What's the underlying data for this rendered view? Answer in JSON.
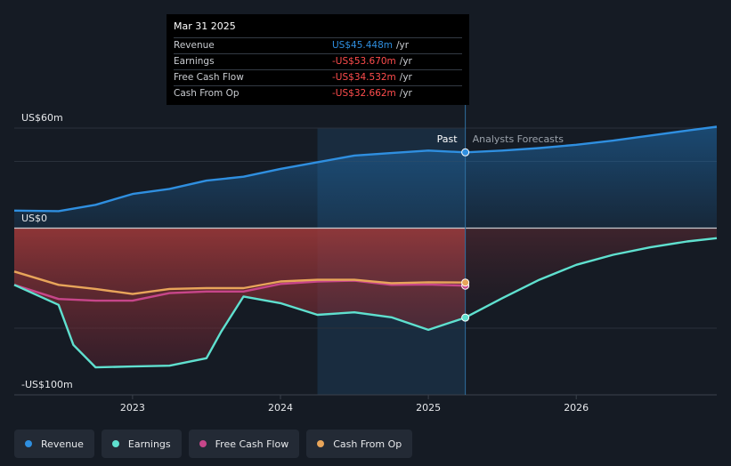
{
  "tooltip": {
    "date": "Mar 31 2025",
    "rows": [
      {
        "label": "Revenue",
        "value": "US$45.448m",
        "unit": "/yr",
        "color": "#2f8fe0"
      },
      {
        "label": "Earnings",
        "value": "-US$53.670m",
        "unit": "/yr",
        "color": "#ff4d4d"
      },
      {
        "label": "Free Cash Flow",
        "value": "-US$34.532m",
        "unit": "/yr",
        "color": "#ff4d4d"
      },
      {
        "label": "Cash From Op",
        "value": "-US$32.662m",
        "unit": "/yr",
        "color": "#ff4d4d"
      }
    ]
  },
  "labels": {
    "past": "Past",
    "forecast": "Analysts Forecasts"
  },
  "legend": [
    {
      "label": "Revenue",
      "color": "#2f8fe0"
    },
    {
      "label": "Earnings",
      "color": "#5fe0cf"
    },
    {
      "label": "Free Cash Flow",
      "color": "#c7468a"
    },
    {
      "label": "Cash From Op",
      "color": "#e8a55a"
    }
  ],
  "chart_data": {
    "type": "line",
    "y_unit": "US$m",
    "ylim": [
      -100,
      60
    ],
    "y_ticks": [
      {
        "value": 60,
        "label": "US$60m"
      },
      {
        "value": 0,
        "label": "US$0"
      },
      {
        "value": -100,
        "label": "-US$100m"
      }
    ],
    "x_ticks": [
      2023,
      2024,
      2025,
      2026
    ],
    "xlim": [
      2022.2,
      2026.95
    ],
    "past_end": 2025.25,
    "forecast_start": 2024.25,
    "series": [
      {
        "name": "Revenue",
        "color": "#2f8fe0",
        "points": [
          [
            2022.2,
            10.5
          ],
          [
            2022.5,
            10.2
          ],
          [
            2022.75,
            14.0
          ],
          [
            2023.0,
            20.5
          ],
          [
            2023.25,
            23.5
          ],
          [
            2023.5,
            28.5
          ],
          [
            2023.75,
            30.8
          ],
          [
            2024.0,
            35.5
          ],
          [
            2024.25,
            39.5
          ],
          [
            2024.5,
            43.5
          ],
          [
            2024.75,
            45.0
          ],
          [
            2025.0,
            46.5
          ],
          [
            2025.25,
            45.448
          ]
        ],
        "forecast": [
          [
            2025.25,
            45.448
          ],
          [
            2025.5,
            46.5
          ],
          [
            2025.75,
            48.0
          ],
          [
            2026.0,
            50.0
          ],
          [
            2026.25,
            52.5
          ],
          [
            2026.5,
            55.5
          ],
          [
            2026.75,
            58.5
          ],
          [
            2026.95,
            60.8
          ]
        ]
      },
      {
        "name": "Earnings",
        "color": "#5fe0cf",
        "points": [
          [
            2022.2,
            -34.0
          ],
          [
            2022.5,
            -46.0
          ],
          [
            2022.6,
            -70.0
          ],
          [
            2022.75,
            -83.5
          ],
          [
            2023.0,
            -83.0
          ],
          [
            2023.25,
            -82.5
          ],
          [
            2023.5,
            -78.0
          ],
          [
            2023.6,
            -62.0
          ],
          [
            2023.75,
            -41.0
          ],
          [
            2024.0,
            -45.0
          ],
          [
            2024.25,
            -52.0
          ],
          [
            2024.5,
            -50.5
          ],
          [
            2024.75,
            -53.5
          ],
          [
            2025.0,
            -61.0
          ],
          [
            2025.25,
            -53.67
          ]
        ],
        "forecast": [
          [
            2025.25,
            -53.67
          ],
          [
            2025.5,
            -42.0
          ],
          [
            2025.75,
            -31.0
          ],
          [
            2026.0,
            -22.0
          ],
          [
            2026.25,
            -16.0
          ],
          [
            2026.5,
            -11.5
          ],
          [
            2026.75,
            -8.0
          ],
          [
            2026.95,
            -6.0
          ]
        ]
      },
      {
        "name": "Free Cash Flow",
        "color": "#c7468a",
        "points": [
          [
            2022.2,
            -34.0
          ],
          [
            2022.5,
            -42.5
          ],
          [
            2022.75,
            -43.5
          ],
          [
            2023.0,
            -43.5
          ],
          [
            2023.25,
            -39.0
          ],
          [
            2023.5,
            -38.0
          ],
          [
            2023.75,
            -38.0
          ],
          [
            2024.0,
            -33.5
          ],
          [
            2024.25,
            -32.0
          ],
          [
            2024.5,
            -31.5
          ],
          [
            2024.75,
            -34.0
          ],
          [
            2025.0,
            -33.8
          ],
          [
            2025.25,
            -34.532
          ]
        ]
      },
      {
        "name": "Cash From Op",
        "color": "#e8a55a",
        "points": [
          [
            2022.2,
            -26.0
          ],
          [
            2022.5,
            -34.0
          ],
          [
            2022.75,
            -36.5
          ],
          [
            2023.0,
            -39.5
          ],
          [
            2023.25,
            -36.5
          ],
          [
            2023.5,
            -36.0
          ],
          [
            2023.75,
            -36.0
          ],
          [
            2024.0,
            -32.0
          ],
          [
            2024.25,
            -31.0
          ],
          [
            2024.5,
            -31.0
          ],
          [
            2024.75,
            -33.0
          ],
          [
            2025.0,
            -32.5
          ],
          [
            2025.25,
            -32.662
          ]
        ]
      }
    ]
  }
}
